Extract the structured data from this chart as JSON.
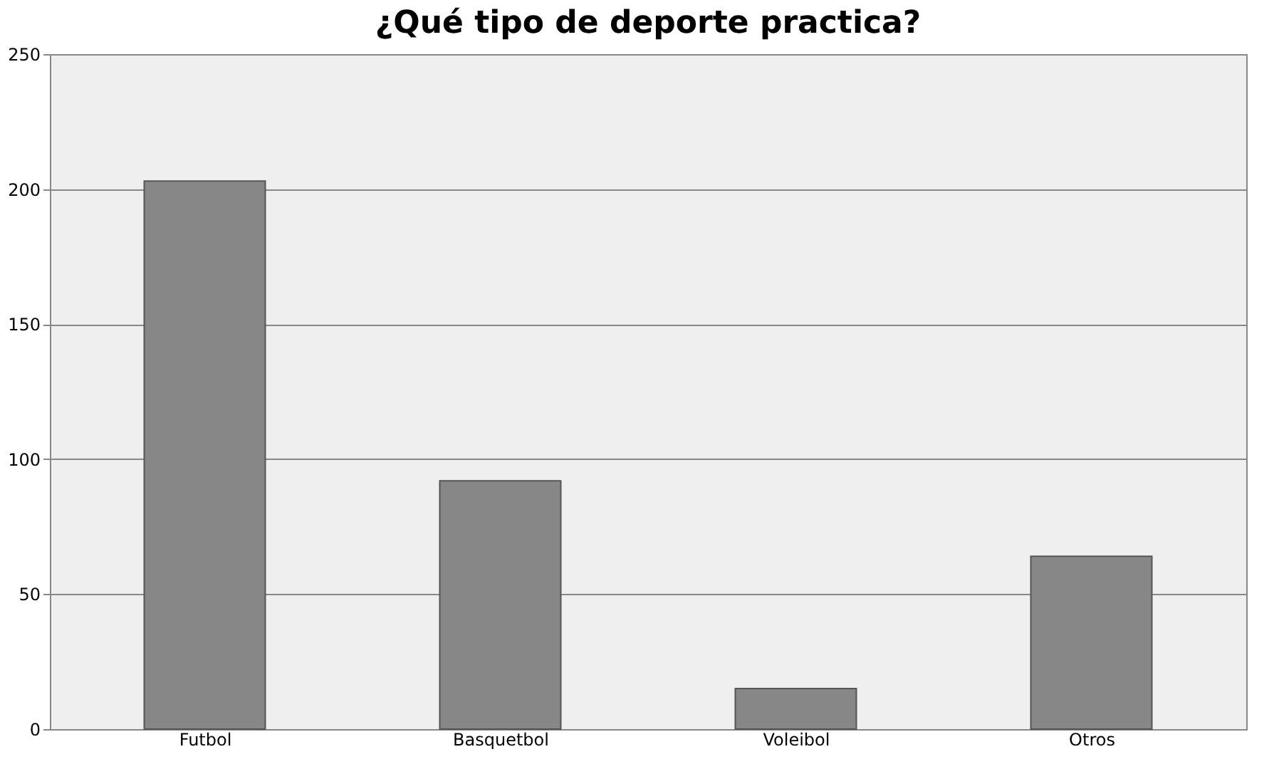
{
  "chart_data": {
    "type": "bar",
    "title": "¿Qué tipo de deporte practica?",
    "categories": [
      "Futbol",
      "Basquetbol",
      "Voleibol",
      "Otros"
    ],
    "values": [
      203,
      92,
      15,
      64
    ],
    "color": "#878787",
    "ylim": [
      0,
      250
    ],
    "yticks": [
      0,
      50,
      100,
      150,
      200,
      250
    ],
    "grid": "y"
  }
}
